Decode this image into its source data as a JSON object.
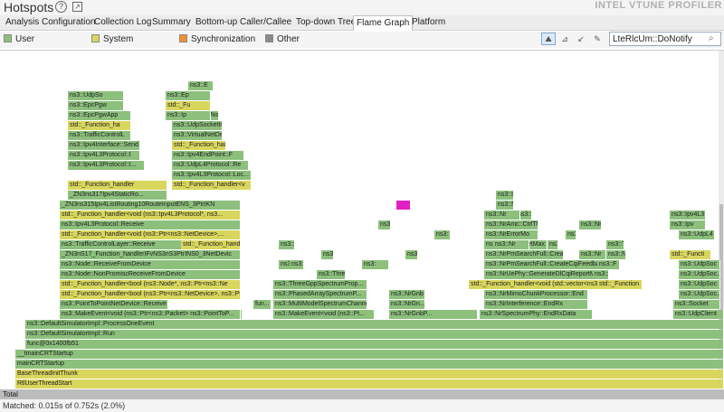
{
  "window": {
    "title": "Hotspots",
    "brand": "INTEL VTUNE PROFILER"
  },
  "tabs": [
    "Analysis Configuration",
    "Collection Log",
    "Summary",
    "Bottom-up",
    "Caller/Callee",
    "Top-down Tree",
    "Flame Graph",
    "Platform"
  ],
  "active_tab": "Flame Graph",
  "legend": [
    {
      "label": "User",
      "color": "#8cc07c"
    },
    {
      "label": "System",
      "color": "#d9d65e"
    },
    {
      "label": "Synchronization",
      "color": "#f29130"
    },
    {
      "label": "Other",
      "color": "#8a8a8a"
    }
  ],
  "search": {
    "value": "LteRlcUm::DoNotify"
  },
  "flame": {
    "total_label": "Total",
    "frames": [
      {
        "t": "RtlUserThreadStart",
        "k": "s"
      },
      {
        "t": "BaseThreadInitThunk",
        "k": "s"
      },
      {
        "t": "mainCRTStartup",
        "k": "u"
      },
      {
        "t": "__tmainCRTStartup",
        "k": "u"
      },
      {
        "t": "func@0x1400fb51",
        "k": "u"
      },
      {
        "t": "ns3::DefaultSimulatorImpl::Run",
        "k": "u"
      },
      {
        "t": "ns3::DefaultSimulatorImpl::ProcessOneEvent",
        "k": "u"
      },
      {
        "t": "ns3::MakeEvent<void (ns3::PointToP...",
        "k": "u"
      },
      {
        "t": "ns3::MakeEvent<void (ns3::Ptr<ns3::Packet> ns3::PointToP...",
        "k": "u"
      },
      {
        "t": "ns3::MakeEvent<void (ns3::Pt...",
        "k": "u"
      },
      {
        "t": "ns3::NrGnbP...",
        "k": "u"
      },
      {
        "t": "ns3::NrSpectrumPhy::EndRxData",
        "k": "u"
      },
      {
        "t": "ns3::UdpClient",
        "k": "u"
      },
      {
        "t": "ns3::PointToPointNetDevice::Receive",
        "k": "u"
      },
      {
        "t": "ns3::MultiModelSpectrumChannel...",
        "k": "u"
      },
      {
        "t": "ns3::NrGn...",
        "k": "u"
      },
      {
        "t": "ns3::NrInterference::EndRx",
        "k": "u"
      },
      {
        "t": "ns3::Socket",
        "k": "u"
      },
      {
        "t": "std::_Function_handler<bool (ns3::Ptr<ns3::NetDevice>, ns3::Ptr",
        "k": "s"
      },
      {
        "t": "ns3::PhasedArraySpectrumP...",
        "k": "u"
      },
      {
        "t": "ns3::NrMimoChunkProcessor::End",
        "k": "u"
      },
      {
        "t": "ns3::UdpSoc...",
        "k": "u"
      },
      {
        "t": "std::_Function_handler<bool (ns3::Node*, ns3::Ptr<ns3::Ne",
        "k": "s"
      },
      {
        "t": "ns3::ThreeGppSpectrumProp...",
        "k": "u"
      },
      {
        "t": "std::_Function_handler<void (std::vector<ns3::Mim...",
        "k": "s"
      },
      {
        "t": "ns3::Node::NonPromiscReceiveFromDevice",
        "k": "u"
      },
      {
        "t": "ns3::Three",
        "k": "u"
      },
      {
        "t": "ns3::NrUePhy::GenerateDlCqiReportMimo",
        "k": "u"
      },
      {
        "t": "ns3::Node::ReceiveFromDevice",
        "k": "u"
      },
      {
        "t": "ns3::T",
        "k": "u"
      },
      {
        "t": "ns3::NrPmSearchFull::CreateCqiFeedbackMimo",
        "k": "u"
      },
      {
        "t": "_ZN3nS17_Function_handlerIFvNS3nS3PtrINS0_3NetDevic",
        "k": "u"
      },
      {
        "t": "ns3::NrPmSearchFull::CreateC",
        "k": "u"
      },
      {
        "t": "ns3::TrafficControlLayer::Receive",
        "k": "u"
      },
      {
        "t": "std::_Function_handler<void (ns3::Ptr<ns3::TrafficControl...",
        "k": "s"
      },
      {
        "t": "ns3::NrAmc::GetMax",
        "k": "u"
      },
      {
        "t": "std::_Function_handler<void (ns3::Ptr<ns3::NetDevice>,...",
        "k": "s"
      },
      {
        "t": "ns3::NrErrorMo",
        "k": "u"
      },
      {
        "t": "ns3::Ipv4L3Protocol::Receive",
        "k": "u"
      },
      {
        "t": "std::_Function_handler<void (ns3::Ipv4L3Protocol*, ns3...",
        "k": "s"
      },
      {
        "t": "ns3::NrAmc::CtrlTble",
        "k": "u"
      },
      {
        "t": "_ZN3ns315Ipv4ListRouting10RouteInputENS_3PtrIKN",
        "k": "u"
      },
      {
        "t": "_ZN3ns317Ipv4StaticRo...",
        "k": "u"
      },
      {
        "t": "std::_Function_handler",
        "k": "s"
      },
      {
        "t": "std::_Function_handler<v",
        "k": "s"
      },
      {
        "t": "ns3::Ipv4L3Protocol::Loc...",
        "k": "u"
      },
      {
        "t": "ns3::Ipv4L3Protocol::I...",
        "k": "u"
      },
      {
        "t": "ns3::UdpL4Protocol::Re",
        "k": "u"
      },
      {
        "t": "ns3::Ipv4L3Protocol::I",
        "k": "u"
      },
      {
        "t": "ns3::Ipv4EndPoint::F",
        "k": "u"
      },
      {
        "t": "ns3::Ipv4Interface::Send",
        "k": "u"
      },
      {
        "t": "std::_Function_handler<v",
        "k": "s"
      },
      {
        "t": "ns3::TrafficControlL",
        "k": "u"
      },
      {
        "t": "ns3::VirtualNetDe",
        "k": "u"
      },
      {
        "t": "std::_Function_ha",
        "k": "s"
      },
      {
        "t": "ns3::UdpSocketImpl",
        "k": "u"
      },
      {
        "t": "ns3::Socket::NotifyD",
        "k": "u"
      },
      {
        "t": "ns3::EpcPgwApp",
        "k": "u"
      },
      {
        "t": "ns3::EpcPgw",
        "k": "u"
      },
      {
        "t": "ns3::UdpSo",
        "k": "u"
      },
      {
        "t": "ns3::Ep",
        "k": "u"
      },
      {
        "t": "ns3::E",
        "k": "u"
      },
      {
        "t": "std::_Fu",
        "k": "s"
      },
      {
        "t": "ns3::Ip",
        "k": "u"
      },
      {
        "t": "ns3::Ipv",
        "k": "u"
      },
      {
        "t": "ns3::Ipv4L3",
        "k": "u"
      },
      {
        "t": "std::_Functi",
        "k": "s"
      },
      {
        "t": "ns3::N",
        "k": "u"
      },
      {
        "t": "ns3::Nr",
        "k": "u"
      },
      {
        "t": "ns3::UdpL4...",
        "k": "u"
      },
      {
        "t": "ns3::T",
        "k": "u"
      },
      {
        "t": "ns3::Three",
        "k": "u"
      },
      {
        "t": "fun...",
        "k": "u"
      },
      {
        "t": "ns3::NrGnb",
        "k": "u"
      },
      {
        "t": "ns3::Nr",
        "k": "u"
      },
      {
        "t": "ns3::UdpSoc",
        "k": "u"
      },
      {
        "t": "ns3::Nr",
        "k": "u"
      },
      {
        "t": "ns3::UdpSoc",
        "k": "u"
      },
      {
        "t": "ns3::Nr",
        "k": "u"
      },
      {
        "t": "ns3::UdpL4",
        "k": "u"
      },
      {
        "t": "ns3::U",
        "k": "u"
      },
      {
        "t": "ns3::F",
        "k": "u"
      },
      {
        "t": "std::_Function",
        "k": "s"
      },
      {
        "t": "ns3::Nr",
        "k": "u"
      },
      {
        "t": "ns3::Ip",
        "k": "u"
      },
      {
        "t": "ns3::N",
        "k": "u"
      },
      {
        "t": "ns3:",
        "k": "u"
      },
      {
        "t": "ns3:",
        "k": "u"
      },
      {
        "t": "ns3:",
        "k": "u"
      },
      {
        "t": "ns3:",
        "k": "u"
      },
      {
        "t": "ns3:",
        "k": "u"
      },
      {
        "t": "ns3:",
        "k": "u"
      },
      {
        "t": "ns3:",
        "k": "u"
      },
      {
        "t": "ns3:",
        "k": "u"
      },
      {
        "t": "",
        "k": "m"
      }
    ]
  },
  "status": "Matched: 0.015s of 0.752s (2.0%)"
}
